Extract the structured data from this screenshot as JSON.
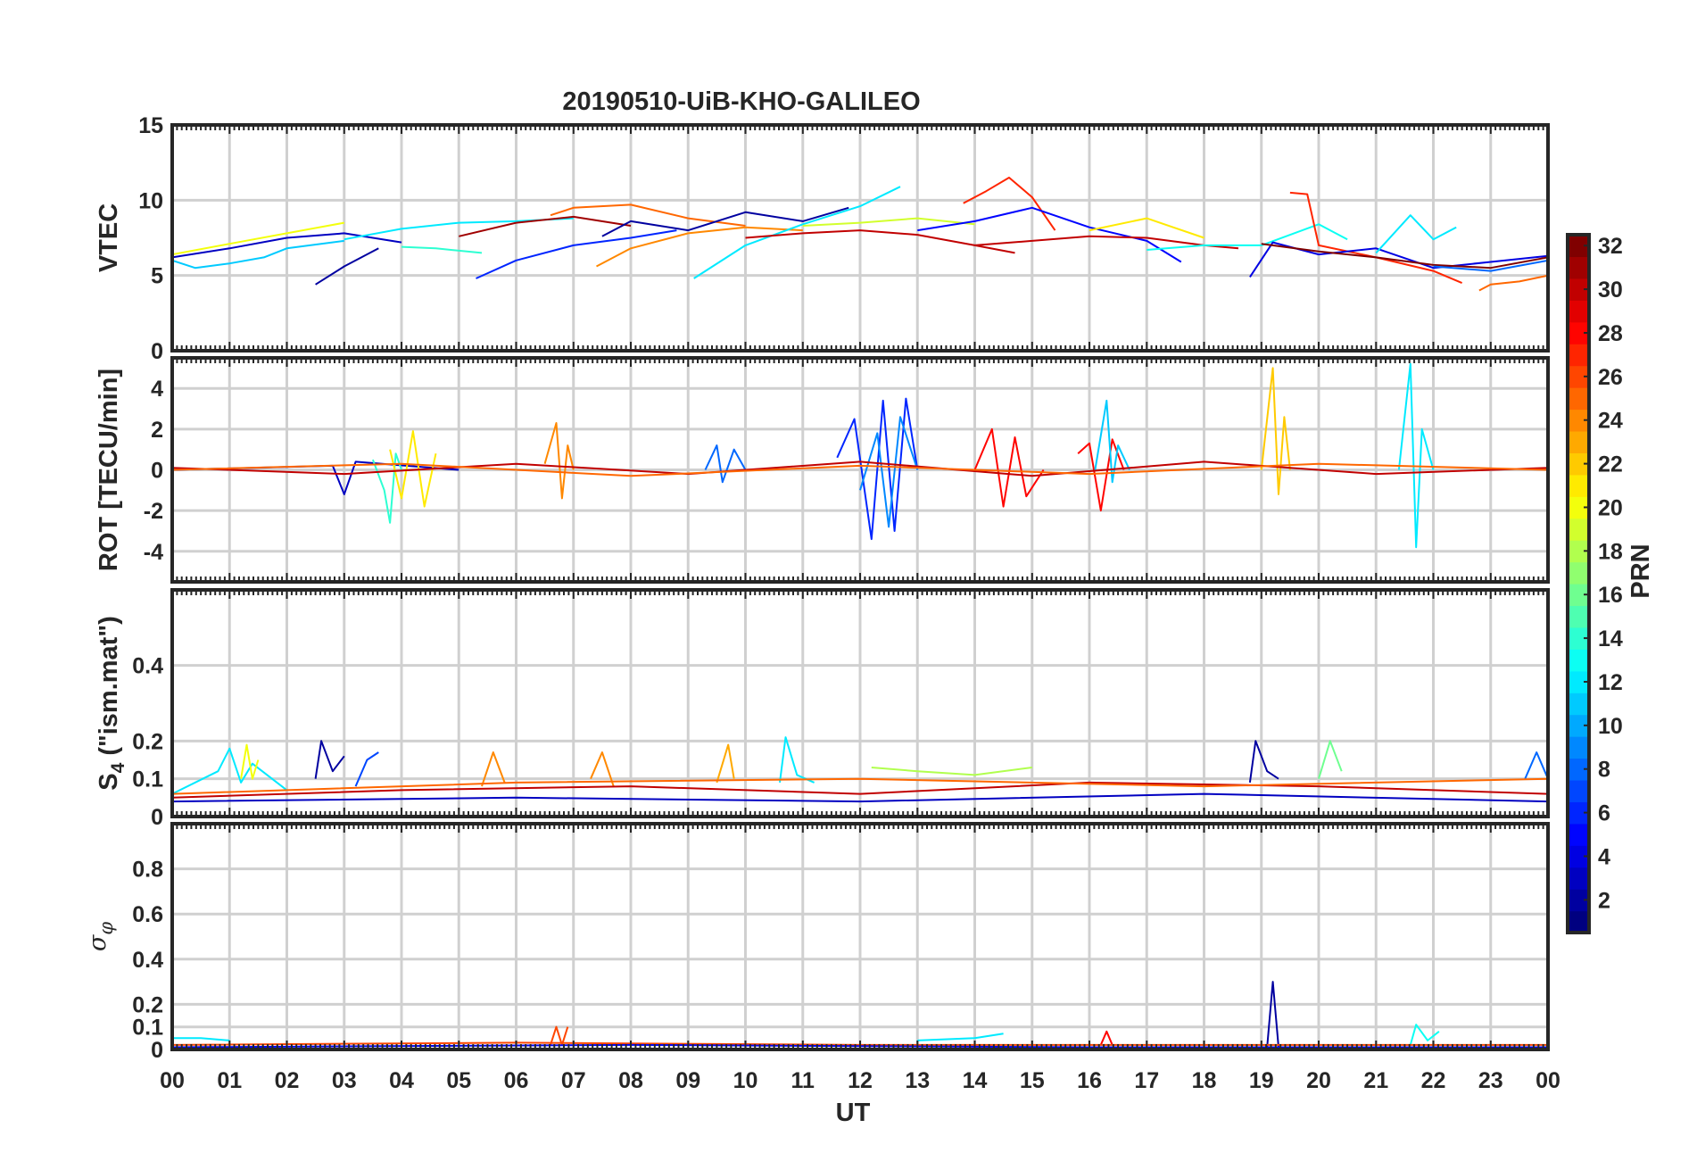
{
  "title": "20190510-UiB-KHO-GALILEO",
  "xlabel": "UT",
  "x_tick_labels": [
    "00",
    "01",
    "02",
    "03",
    "04",
    "05",
    "06",
    "07",
    "08",
    "09",
    "10",
    "11",
    "12",
    "13",
    "14",
    "15",
    "16",
    "17",
    "18",
    "19",
    "20",
    "21",
    "22",
    "23",
    "00"
  ],
  "colorbar": {
    "label": "PRN",
    "range": [
      1,
      32
    ],
    "tick_labels": [
      "2",
      "4",
      "6",
      "8",
      "10",
      "12",
      "14",
      "16",
      "18",
      "20",
      "22",
      "24",
      "26",
      "28",
      "30",
      "32"
    ],
    "colormap": "jet"
  },
  "chart_data": [
    {
      "type": "line",
      "panel": "vtec",
      "ylabel": "VTEC",
      "xlim": [
        0,
        24
      ],
      "ylim": [
        0,
        15
      ],
      "yticks": [
        0,
        5,
        10,
        15
      ],
      "grid": true,
      "series": [
        {
          "prn": 3,
          "x": [
            0,
            1,
            2,
            3,
            4
          ],
          "y": [
            6.2,
            6.8,
            7.5,
            7.8,
            7.2
          ]
        },
        {
          "prn": 2,
          "x": [
            2.5,
            3,
            3.6
          ],
          "y": [
            4.4,
            5.6,
            6.8
          ]
        },
        {
          "prn": 11,
          "x": [
            0,
            0.4,
            1,
            1.6,
            2,
            3
          ],
          "y": [
            6.0,
            5.5,
            5.8,
            6.2,
            6.8,
            7.3
          ]
        },
        {
          "prn": 12,
          "x": [
            3,
            4,
            5,
            6,
            7
          ],
          "y": [
            7.4,
            8.1,
            8.5,
            8.6,
            8.8
          ]
        },
        {
          "prn": 20,
          "x": [
            0,
            1,
            2,
            3
          ],
          "y": [
            6.4,
            7.1,
            7.8,
            8.5
          ]
        },
        {
          "prn": 14,
          "x": [
            4,
            4.6,
            5.4
          ],
          "y": [
            6.9,
            6.8,
            6.5
          ]
        },
        {
          "prn": 6,
          "x": [
            5.3,
            6,
            7,
            8,
            8.8
          ],
          "y": [
            4.8,
            6.0,
            7.0,
            7.5,
            8.0
          ]
        },
        {
          "prn": 25,
          "x": [
            6.6,
            7,
            8,
            9,
            10
          ],
          "y": [
            9.0,
            9.5,
            9.7,
            8.8,
            8.3
          ]
        },
        {
          "prn": 31,
          "x": [
            5,
            6,
            7,
            8
          ],
          "y": [
            7.6,
            8.5,
            8.9,
            8.3
          ]
        },
        {
          "prn": 24,
          "x": [
            7.4,
            8,
            9,
            10,
            11
          ],
          "y": [
            5.6,
            6.8,
            7.8,
            8.2,
            8.0
          ]
        },
        {
          "prn": 2,
          "x": [
            7.5,
            8,
            9,
            10,
            11,
            11.8
          ],
          "y": [
            7.6,
            8.6,
            8.0,
            9.2,
            8.6,
            9.5
          ]
        },
        {
          "prn": 12,
          "x": [
            9.1,
            10,
            11,
            12,
            12.7
          ],
          "y": [
            4.8,
            7.0,
            8.4,
            9.6,
            10.9
          ]
        },
        {
          "prn": 30,
          "x": [
            10,
            11,
            12,
            13,
            14,
            14.7
          ],
          "y": [
            7.5,
            7.8,
            8.0,
            7.7,
            7.0,
            6.5
          ]
        },
        {
          "prn": 19,
          "x": [
            11,
            12,
            13,
            14
          ],
          "y": [
            8.3,
            8.5,
            8.8,
            8.4
          ]
        },
        {
          "prn": 27,
          "x": [
            13.8,
            14.2,
            14.6,
            15,
            15.4
          ],
          "y": [
            9.8,
            10.6,
            11.5,
            10.2,
            8.0
          ]
        },
        {
          "prn": 5,
          "x": [
            13,
            14,
            15,
            16,
            17,
            17.6
          ],
          "y": [
            8.0,
            8.6,
            9.5,
            8.2,
            7.3,
            5.9
          ]
        },
        {
          "prn": 30,
          "x": [
            14,
            15,
            16,
            17,
            18,
            18.6
          ],
          "y": [
            7.0,
            7.3,
            7.6,
            7.5,
            7.0,
            6.8
          ]
        },
        {
          "prn": 21,
          "x": [
            16,
            17,
            18
          ],
          "y": [
            8.0,
            8.8,
            7.5
          ]
        },
        {
          "prn": 13,
          "x": [
            17,
            18,
            19,
            20,
            20.5
          ],
          "y": [
            6.7,
            7.0,
            7.0,
            8.4,
            7.4
          ]
        },
        {
          "prn": 27,
          "x": [
            19.5,
            19.8,
            20,
            21,
            22,
            22.5
          ],
          "y": [
            10.5,
            10.4,
            7.0,
            6.2,
            5.3,
            4.5
          ]
        },
        {
          "prn": 4,
          "x": [
            18.8,
            19.2,
            20,
            21,
            22,
            23,
            24
          ],
          "y": [
            4.9,
            7.2,
            6.4,
            6.8,
            5.5,
            5.9,
            6.3
          ]
        },
        {
          "prn": 32,
          "x": [
            19,
            20,
            21,
            22,
            23,
            24
          ],
          "y": [
            7.1,
            6.6,
            6.2,
            5.7,
            5.5,
            6.2
          ]
        },
        {
          "prn": 12,
          "x": [
            21,
            21.6,
            22,
            22.4
          ],
          "y": [
            6.5,
            9.0,
            7.4,
            8.2
          ]
        },
        {
          "prn": 25,
          "x": [
            22.8,
            23,
            23.5,
            24
          ],
          "y": [
            4.0,
            4.4,
            4.6,
            5.0
          ]
        },
        {
          "prn": 8,
          "x": [
            22,
            23,
            24
          ],
          "y": [
            5.6,
            5.3,
            6.0
          ]
        }
      ]
    },
    {
      "type": "line",
      "panel": "rot",
      "ylabel": "ROT [TECU/min]",
      "xlim": [
        0,
        24
      ],
      "ylim": [
        -5.5,
        5.5
      ],
      "yticks": [
        -4,
        -2,
        0,
        2,
        4
      ],
      "grid": true,
      "series": [
        {
          "prn": 3,
          "x": [
            0,
            2.8,
            3.0,
            3.2,
            5
          ],
          "y": [
            0,
            0.2,
            -1.2,
            0.4,
            0
          ]
        },
        {
          "prn": 14,
          "x": [
            3.5,
            3.7,
            3.8,
            3.9,
            4.0
          ],
          "y": [
            0.5,
            -1.0,
            -2.6,
            0.8,
            0
          ]
        },
        {
          "prn": 21,
          "x": [
            3.8,
            4.0,
            4.2,
            4.4,
            4.6
          ],
          "y": [
            1.0,
            -1.4,
            1.9,
            -1.8,
            0.8
          ]
        },
        {
          "prn": 24,
          "x": [
            6.5,
            6.7,
            6.8,
            6.9,
            7.0
          ],
          "y": [
            0.3,
            2.3,
            -1.4,
            1.2,
            0
          ]
        },
        {
          "prn": 8,
          "x": [
            9.3,
            9.5,
            9.6,
            9.8,
            10.0
          ],
          "y": [
            0,
            1.2,
            -0.6,
            1.0,
            0
          ]
        },
        {
          "prn": 6,
          "x": [
            11.6,
            11.9,
            12.2,
            12.4,
            12.6,
            12.8,
            13.0
          ],
          "y": [
            0.6,
            2.5,
            -3.4,
            3.4,
            -3.0,
            3.5,
            0
          ]
        },
        {
          "prn": 9,
          "x": [
            12,
            12.3,
            12.5,
            12.7,
            13.0
          ],
          "y": [
            -1.0,
            1.8,
            -2.8,
            2.6,
            0
          ]
        },
        {
          "prn": 28,
          "x": [
            14,
            14.3,
            14.5,
            14.7,
            14.9,
            15.2
          ],
          "y": [
            0,
            2.0,
            -1.8,
            1.6,
            -1.3,
            0
          ]
        },
        {
          "prn": 28,
          "x": [
            15.8,
            16.0,
            16.2,
            16.4,
            16.6
          ],
          "y": [
            0.8,
            1.3,
            -2.0,
            1.5,
            0
          ]
        },
        {
          "prn": 11,
          "x": [
            16.1,
            16.3,
            16.4,
            16.5,
            16.7
          ],
          "y": [
            0,
            3.4,
            -0.6,
            1.2,
            0
          ]
        },
        {
          "prn": 22,
          "x": [
            19.0,
            19.2,
            19.3,
            19.4,
            19.5
          ],
          "y": [
            0,
            5.0,
            -1.2,
            2.6,
            0
          ]
        },
        {
          "prn": 12,
          "x": [
            21.4,
            21.6,
            21.7,
            21.8,
            22.0
          ],
          "y": [
            0,
            5.2,
            -3.8,
            2.0,
            0
          ]
        },
        {
          "prn": 30,
          "x": [
            0,
            3,
            6,
            9,
            12,
            15,
            18,
            21,
            24
          ],
          "y": [
            0.1,
            -0.2,
            0.3,
            -0.2,
            0.4,
            -0.3,
            0.4,
            -0.2,
            0.1
          ]
        },
        {
          "prn": 25,
          "x": [
            0,
            4,
            8,
            12,
            16,
            20,
            24
          ],
          "y": [
            0,
            0.3,
            -0.3,
            0.2,
            -0.2,
            0.3,
            0
          ]
        }
      ]
    },
    {
      "type": "line",
      "panel": "s4",
      "ylabel_main": "S",
      "ylabel_sub": "4",
      "ylabel_rest": " (\"ism.mat\")",
      "xlim": [
        0,
        24
      ],
      "ylim": [
        0,
        0.6
      ],
      "yticks": [
        0,
        0.1,
        0.2,
        0.4
      ],
      "ytick_labels": [
        "0",
        "0.1",
        "0.2",
        "0.4"
      ],
      "grid": true,
      "series": [
        {
          "prn": 12,
          "x": [
            0,
            0.8,
            1.0,
            1.2,
            1.4,
            2.0
          ],
          "y": [
            0.06,
            0.12,
            0.18,
            0.09,
            0.14,
            0.07
          ]
        },
        {
          "prn": 20,
          "x": [
            1.2,
            1.3,
            1.4,
            1.5
          ],
          "y": [
            0.1,
            0.19,
            0.1,
            0.15
          ]
        },
        {
          "prn": 2,
          "x": [
            2.5,
            2.6,
            2.8,
            3.0
          ],
          "y": [
            0.1,
            0.2,
            0.12,
            0.16
          ]
        },
        {
          "prn": 7,
          "x": [
            3.2,
            3.4,
            3.6
          ],
          "y": [
            0.08,
            0.15,
            0.17
          ]
        },
        {
          "prn": 24,
          "x": [
            5.4,
            5.6,
            5.8
          ],
          "y": [
            0.08,
            0.17,
            0.09
          ]
        },
        {
          "prn": 24,
          "x": [
            7.3,
            7.5,
            7.7
          ],
          "y": [
            0.1,
            0.17,
            0.08
          ]
        },
        {
          "prn": 23,
          "x": [
            9.5,
            9.7,
            9.8
          ],
          "y": [
            0.09,
            0.19,
            0.1
          ]
        },
        {
          "prn": 12,
          "x": [
            10.6,
            10.7,
            10.9,
            11.2
          ],
          "y": [
            0.09,
            0.21,
            0.11,
            0.09
          ]
        },
        {
          "prn": 18,
          "x": [
            12.2,
            13,
            14,
            15
          ],
          "y": [
            0.13,
            0.12,
            0.11,
            0.13
          ]
        },
        {
          "prn": 2,
          "x": [
            18.8,
            18.9,
            19.1,
            19.3
          ],
          "y": [
            0.09,
            0.2,
            0.12,
            0.1
          ]
        },
        {
          "prn": 16,
          "x": [
            20.0,
            20.2,
            20.4
          ],
          "y": [
            0.1,
            0.2,
            0.12
          ]
        },
        {
          "prn": 8,
          "x": [
            23.6,
            23.8,
            24
          ],
          "y": [
            0.1,
            0.17,
            0.1
          ]
        },
        {
          "prn": 30,
          "x": [
            0,
            4,
            8,
            12,
            16,
            20,
            24
          ],
          "y": [
            0.05,
            0.07,
            0.08,
            0.06,
            0.09,
            0.08,
            0.06
          ]
        },
        {
          "prn": 3,
          "x": [
            0,
            6,
            12,
            18,
            24
          ],
          "y": [
            0.04,
            0.05,
            0.04,
            0.06,
            0.04
          ]
        },
        {
          "prn": 25,
          "x": [
            0,
            6,
            12,
            18,
            24
          ],
          "y": [
            0.06,
            0.09,
            0.1,
            0.08,
            0.1
          ]
        }
      ]
    },
    {
      "type": "line",
      "panel": "sigma_phi",
      "ylabel_main": "σ",
      "ylabel_sub": "φ",
      "xlim": [
        0,
        24
      ],
      "ylim": [
        0,
        1
      ],
      "yticks": [
        0,
        0.1,
        0.2,
        0.4,
        0.6,
        0.8
      ],
      "ytick_labels": [
        "0",
        "0.1",
        "0.2",
        "0.4",
        "0.6",
        "0.8"
      ],
      "grid": true,
      "series": [
        {
          "prn": 12,
          "x": [
            0,
            0.5,
            1.0
          ],
          "y": [
            0.05,
            0.05,
            0.04
          ]
        },
        {
          "prn": 26,
          "x": [
            6.6,
            6.7,
            6.8,
            6.9
          ],
          "y": [
            0.02,
            0.1,
            0.02,
            0.1
          ]
        },
        {
          "prn": 12,
          "x": [
            13,
            14,
            14.5
          ],
          "y": [
            0.04,
            0.05,
            0.07
          ]
        },
        {
          "prn": 28,
          "x": [
            16.2,
            16.3,
            16.4
          ],
          "y": [
            0.02,
            0.08,
            0.02
          ]
        },
        {
          "prn": 2,
          "x": [
            19.1,
            19.2,
            19.3
          ],
          "y": [
            0.01,
            0.3,
            0.01
          ]
        },
        {
          "prn": 13,
          "x": [
            21.6,
            21.7,
            21.9,
            22.1
          ],
          "y": [
            0.02,
            0.11,
            0.04,
            0.08
          ]
        },
        {
          "prn": 26,
          "x": [
            0,
            6,
            12,
            18,
            24
          ],
          "y": [
            0.02,
            0.03,
            0.02,
            0.02,
            0.02
          ]
        },
        {
          "prn": 5,
          "x": [
            0,
            8,
            16,
            24
          ],
          "y": [
            0.01,
            0.02,
            0.01,
            0.01
          ]
        }
      ]
    }
  ]
}
